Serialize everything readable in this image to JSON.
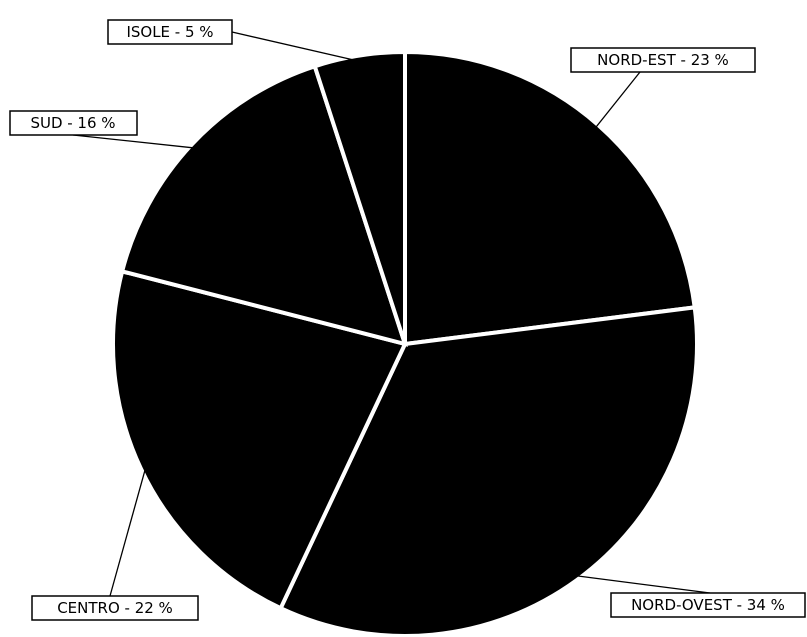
{
  "chart_data": {
    "type": "pie",
    "slices": [
      {
        "name": "NORD-EST",
        "value": 23,
        "label": "NORD-EST - 23 %"
      },
      {
        "name": "NORD-OVEST",
        "value": 34,
        "label": "NORD-OVEST - 34 %"
      },
      {
        "name": "CENTRO",
        "value": 22,
        "label": "CENTRO - 22 %"
      },
      {
        "name": "SUD",
        "value": 16,
        "label": "SUD - 16 %"
      },
      {
        "name": "ISOLE",
        "value": 5,
        "label": "ISOLE - 5 %"
      }
    ],
    "start": "12 o'clock",
    "direction": "clockwise",
    "slice_color": "#000000",
    "separator_color": "#ffffff",
    "legend": "none"
  }
}
